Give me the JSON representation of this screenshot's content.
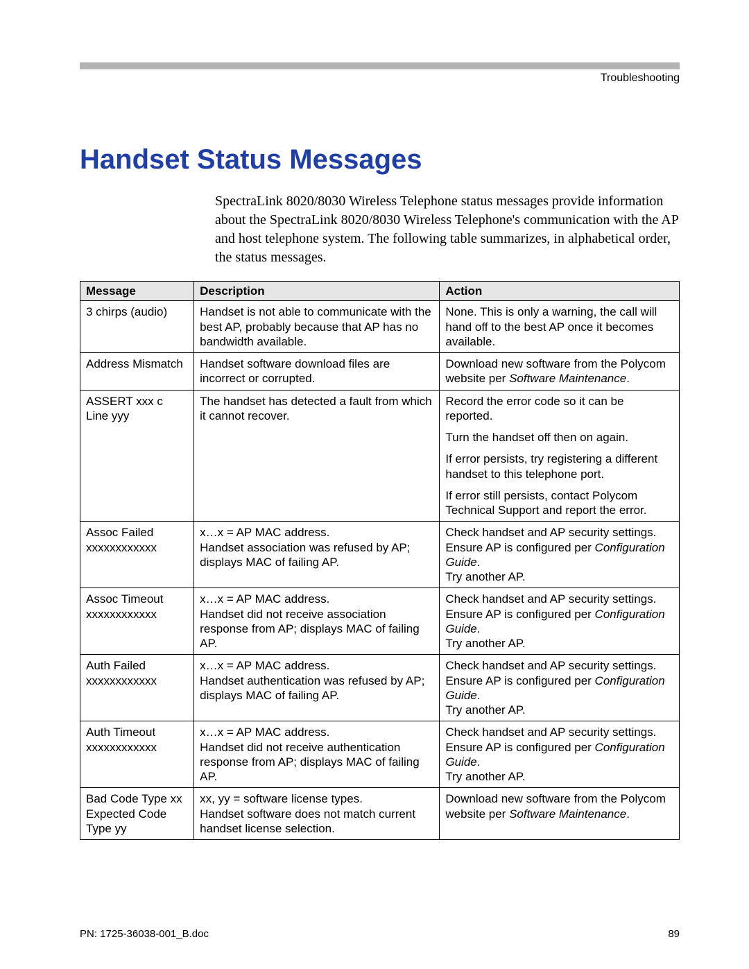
{
  "header": {
    "section": "Troubleshooting"
  },
  "title": "Handset Status Messages",
  "intro": "SpectraLink 8020/8030 Wireless Telephone status messages provide information about the SpectraLink 8020/8030 Wireless Telephone's communication with the AP and host telephone system. The following table summarizes, in alphabetical order, the status messages.",
  "table": {
    "columns": {
      "message": "Message",
      "description": "Description",
      "action": "Action"
    },
    "rows": [
      {
        "message": "3 chirps (audio)",
        "description": "Handset is not able to communicate with the best AP, probably because that AP has no bandwidth available.",
        "actions": [
          "None. This is only a warning, the call will hand off to the best AP once it becomes available."
        ]
      },
      {
        "message": "Address Mismatch",
        "description": "Handset software download files are incorrect or corrupted.",
        "actions": [
          "Download new software from the Polycom website per <em class=\"book\">Software Maintenance</em>."
        ]
      },
      {
        "message": "ASSERT xxx c<br>Line yyy",
        "description": "The handset has detected a fault from which it cannot recover.",
        "actions": [
          "Record the error code so it can be reported.",
          "Turn the handset off then on again.",
          "If error persists, try registering a different handset to this telephone port.",
          "If error still persists, contact Polycom Technical Support and report the error."
        ]
      },
      {
        "message": "Assoc Failed<br>xxxxxxxxxxxx",
        "description": "x…x = AP MAC address.<br>Handset association was refused by AP; displays MAC of failing AP.",
        "actions": [
          "Check handset and AP security settings.<br>Ensure AP is configured per <em class=\"book\">Configuration Guide</em>.<br>Try another AP."
        ]
      },
      {
        "message": "Assoc Timeout<br>xxxxxxxxxxxx",
        "description": "x…x = AP MAC address.<br>Handset did not receive association response from AP; displays MAC of failing AP.",
        "actions": [
          "Check handset and AP security settings.<br>Ensure AP is configured per <em class=\"book\">Configuration Guide</em>.<br>Try another AP."
        ]
      },
      {
        "message": "Auth Failed<br>xxxxxxxxxxxx",
        "description": "x…x = AP MAC address.<br>Handset authentication was refused by AP; displays MAC of failing AP.",
        "actions": [
          "Check handset and AP security settings.<br>Ensure AP is configured per <em class=\"book\">Configuration Guide</em>.<br>Try another AP."
        ]
      },
      {
        "message": "Auth Timeout<br>xxxxxxxxxxxx",
        "description": "x…x = AP MAC address.<br>Handset did not receive authentication response from AP; displays MAC of failing AP.",
        "actions": [
          "Check handset and AP security settings.<br>Ensure AP is configured per <em class=\"book\">Configuration Guide</em>.<br>Try another AP."
        ]
      },
      {
        "message": "Bad Code Type xx<br>Expected Code<br>Type yy",
        "description": "xx, yy = software license types.<br>Handset software does not match current handset license selection.",
        "actions": [
          "Download new software from the Polycom website per <em class=\"book\">Software Maintenance</em>."
        ]
      }
    ]
  },
  "footer": {
    "doc": "PN: 1725-36038-001_B.doc",
    "page": "89"
  },
  "colors": {
    "title_color": "#1f3ea8",
    "header_rule": "#b3b3b3",
    "table_header_bg": "#e7e6e6",
    "border": "#000000",
    "text": "#000000"
  }
}
